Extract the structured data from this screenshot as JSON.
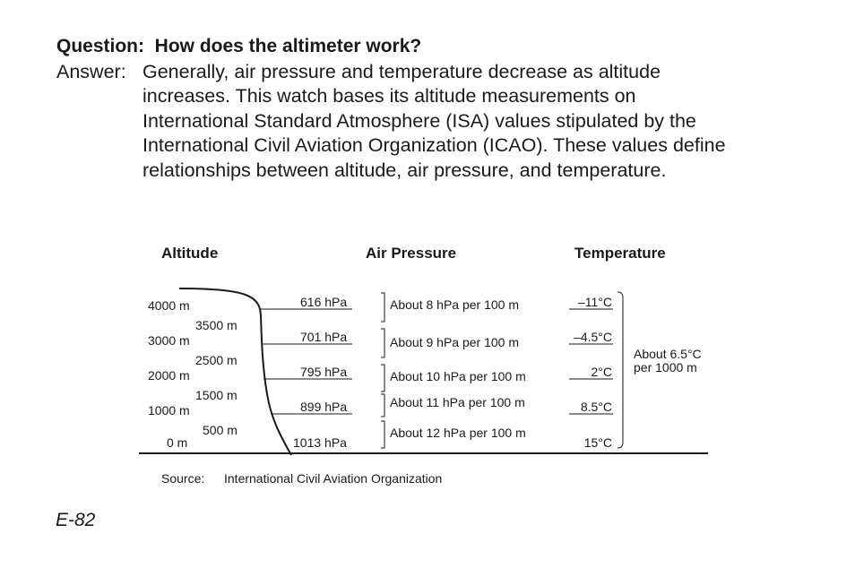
{
  "question": {
    "label": "Question:",
    "text": "How does the altimeter work?"
  },
  "answer": {
    "label": "Answer:",
    "lines": [
      "Generally, air pressure and temperature decrease as altitude",
      "increases. This watch bases its altitude measurements on",
      "International Standard Atmosphere (ISA) values stipulated by the",
      "International Civil Aviation Organization (ICAO). These values define",
      "relationships between altitude, air pressure, and temperature."
    ]
  },
  "table": {
    "headers": {
      "altitude": "Altitude",
      "pressure": "Air Pressure",
      "temperature": "Temperature"
    },
    "altitudes_major": [
      "4000 m",
      "3000 m",
      "2000 m",
      "1000 m",
      "0 m"
    ],
    "altitudes_minor": [
      "3500 m",
      "2500 m",
      "1500 m",
      "500 m"
    ],
    "pressures": [
      "616 hPa",
      "701 hPa",
      "795 hPa",
      "899 hPa",
      "1013 hPa"
    ],
    "pressure_rates": [
      "About 8 hPa per 100 m",
      "About 9 hPa per 100 m",
      "About 10 hPa per 100 m",
      "About 11 hPa per 100 m",
      "About 12 hPa per 100 m"
    ],
    "temperatures": [
      "–11°C",
      "–4.5°C",
      "2°C",
      "8.5°C",
      "15°C"
    ],
    "temperature_rate": [
      "About 6.5°C",
      "per 1000 m"
    ]
  },
  "source": {
    "label": "Source:",
    "text": "International Civil Aviation Organization"
  },
  "page_number": "E-82"
}
